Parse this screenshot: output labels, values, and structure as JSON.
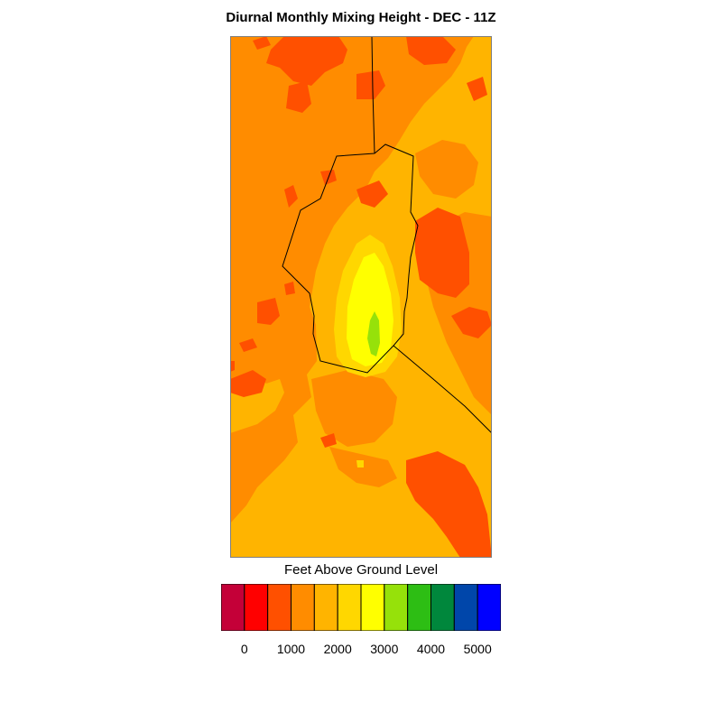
{
  "title": "Diurnal Monthly Mixing Height - DEC - 11Z",
  "colorbar": {
    "label": "Feet Above Ground Level",
    "colors": [
      "#c40038",
      "#ff0000",
      "#ff5000",
      "#ff8c00",
      "#ffb400",
      "#ffd700",
      "#ffff00",
      "#96e10a",
      "#2dbe14",
      "#00873c",
      "#0046aa",
      "#0000ff"
    ],
    "tick_labels": [
      "0",
      "1000",
      "2000",
      "3000",
      "4000",
      "5000"
    ]
  },
  "map": {
    "background_color": "#ff8c00",
    "fill_colors": {
      "low": "#ff5000",
      "mid": "#ffb400",
      "high": "#ffd700",
      "higher": "#ffff00",
      "peak": "#96e10a"
    }
  }
}
